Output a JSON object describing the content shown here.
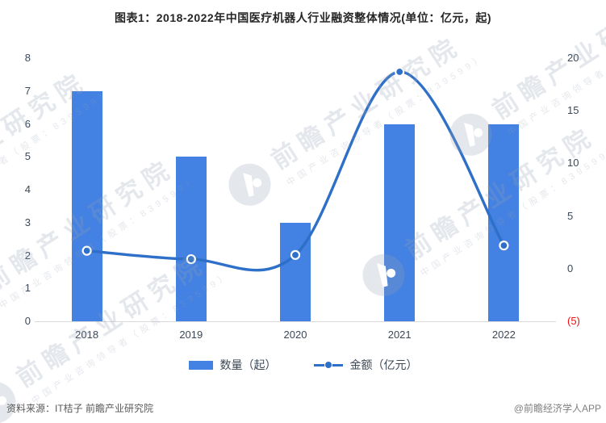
{
  "title": "图表1：2018-2022年中国医疗机器人行业融资整体情况(单位：亿元，起)",
  "chart_data": {
    "type": "bar",
    "combo": "bar+line",
    "title": "图表1：2018-2022年中国医疗机器人行业融资整体情况(单位：亿元，起)",
    "categories": [
      "2018",
      "2019",
      "2020",
      "2021",
      "2022"
    ],
    "series": [
      {
        "name": "数量（起）",
        "type": "bar",
        "yaxis": "left",
        "unit": "起",
        "values": [
          7,
          5,
          3,
          6,
          6
        ]
      },
      {
        "name": "金额（亿元）",
        "type": "line",
        "yaxis": "right",
        "unit": "亿元",
        "values": [
          1.7,
          0.9,
          1.3,
          18.7,
          2.2
        ]
      }
    ],
    "left_axis": {
      "min": 0,
      "max": 8,
      "step": 1,
      "ticks": [
        {
          "label": "0",
          "value": 0
        },
        {
          "label": "1",
          "value": 1
        },
        {
          "label": "2",
          "value": 2
        },
        {
          "label": "3",
          "value": 3
        },
        {
          "label": "4",
          "value": 4
        },
        {
          "label": "5",
          "value": 5
        },
        {
          "label": "6",
          "value": 6
        },
        {
          "label": "7",
          "value": 7
        },
        {
          "label": "8",
          "value": 8
        }
      ]
    },
    "right_axis": {
      "min": -5,
      "max": 20,
      "step": 5,
      "ticks": [
        {
          "label": "20",
          "value": 20
        },
        {
          "label": "15",
          "value": 15
        },
        {
          "label": "10",
          "value": 10
        },
        {
          "label": "5",
          "value": 5
        },
        {
          "label": "0",
          "value": 0
        },
        {
          "label": "(5)",
          "value": -5,
          "negative": true
        }
      ]
    },
    "grid": false,
    "legend_position": "bottom"
  },
  "legend": [
    {
      "label": "数量（起）",
      "swatch": "bar"
    },
    {
      "label": "金额（亿元）",
      "swatch": "line-dot"
    }
  ],
  "footer": {
    "source": "资料来源：IT桔子 前瞻产业研究院",
    "credit": "@前瞻经济学人APP"
  },
  "watermark": {
    "text": "前瞻产业研究院",
    "subtext": "中国产业咨询领导者（股票：839599）"
  },
  "colors": {
    "bar": "#4381e2",
    "line": "#2e6fc8",
    "marker_fill": "#2e6fc8",
    "marker_ring": "#ffffff",
    "axis_line": "#d9d9d9",
    "tick_label": "#3c4858",
    "negative_label": "#e61212",
    "title": "#262626",
    "source_text": "#595959",
    "credit_text": "#7f7f7f"
  }
}
